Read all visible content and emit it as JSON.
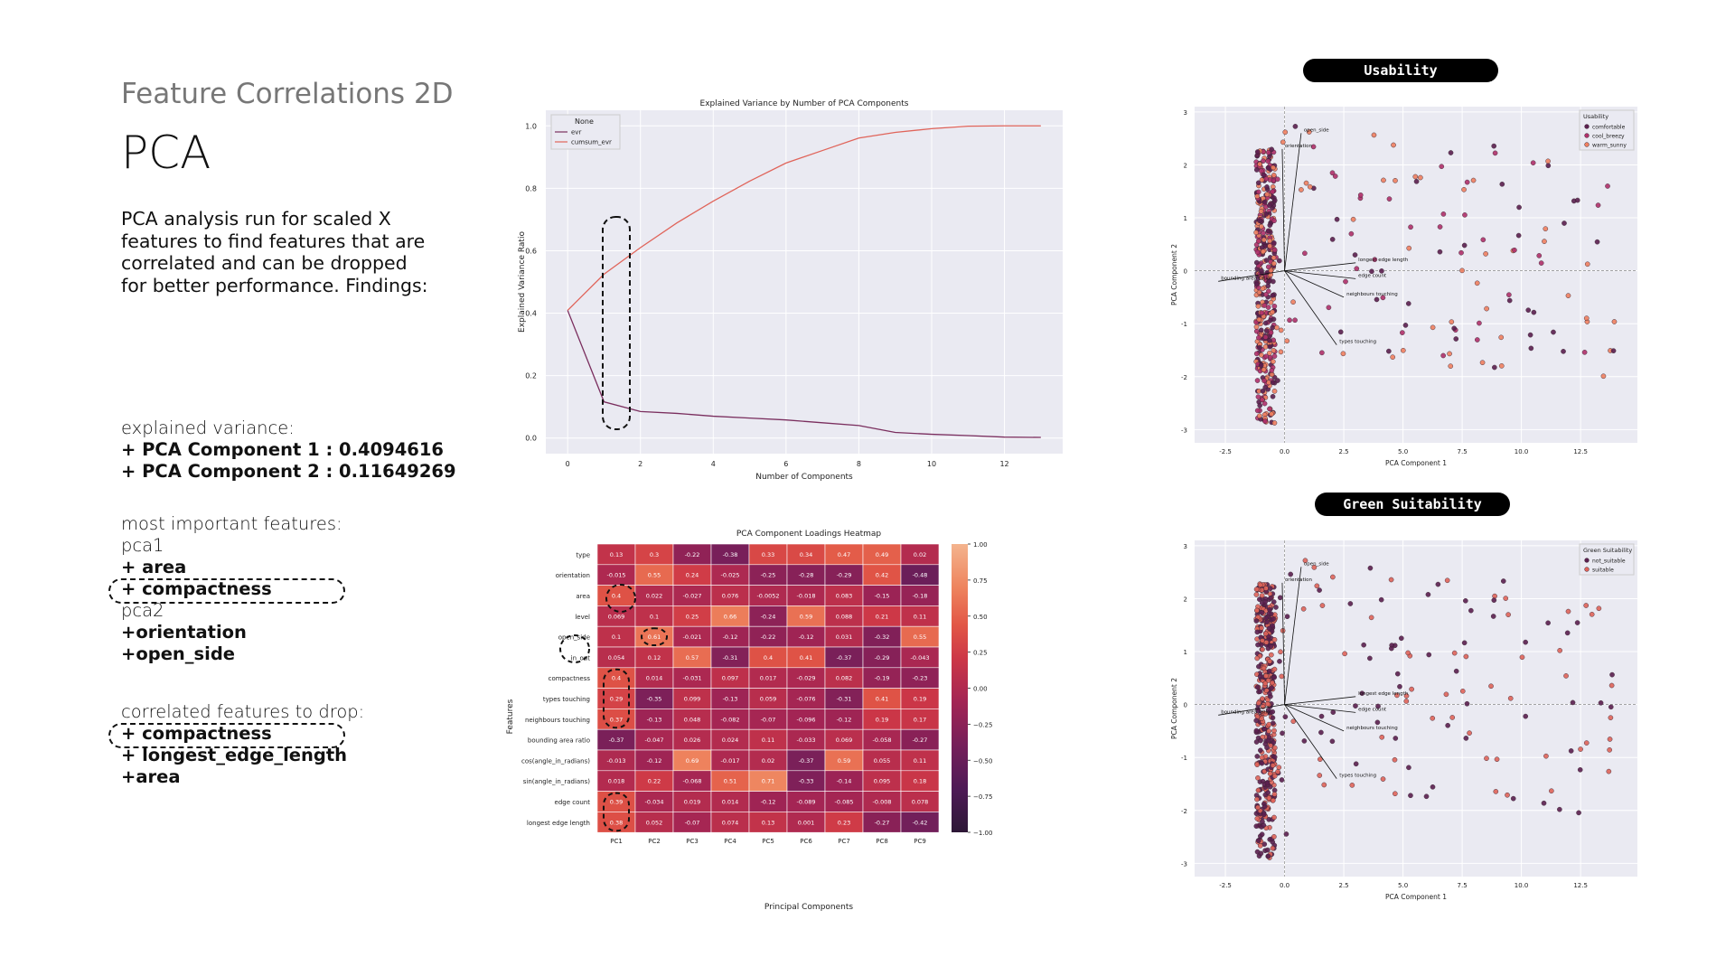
{
  "slide": {
    "eyebrow": "Feature Correlations 2D",
    "title": "PCA",
    "intro": "PCA analysis run for scaled X features to find features that are correlated and can be dropped for better performance. Findings:",
    "variance_heading": "explained variance:",
    "variance_line1": "+ PCA Component 1 :  0.4094616",
    "variance_line2": "+ PCA Component 2 : 0.11649269",
    "important_heading": "most important features:",
    "pca1_label": "pca1",
    "pca1_feat1": "+ area",
    "pca1_feat2": "+ compactness",
    "pca2_label": "pca2",
    "pca2_feat1": "+orientation",
    "pca2_feat2": "+open_side",
    "drop_heading": "correlated features to drop:",
    "drop1": "+ compactness",
    "drop2": "+ longest_edge_length",
    "drop3": "+area",
    "usability_pill": "Usability",
    "green_pill": "Green Suitability"
  },
  "chart_data": [
    {
      "type": "line",
      "title": "Explained Variance by Number of PCA Components",
      "xlabel": "Number of Components",
      "ylabel": "Explained Variance Ratio",
      "legend_title": "None",
      "legend_position": "top-left",
      "x": [
        0,
        1,
        2,
        3,
        4,
        5,
        6,
        7,
        8,
        9,
        10,
        11,
        12,
        13
      ],
      "xlim": [
        -0.6,
        13.6
      ],
      "ylim": [
        -0.05,
        1.05
      ],
      "xticks": [
        0,
        2,
        4,
        6,
        8,
        10,
        12
      ],
      "yticks": [
        0.0,
        0.2,
        0.4,
        0.6,
        0.8,
        1.0
      ],
      "grid": true,
      "series": [
        {
          "name": "evr",
          "color": "#7a2e5e",
          "values": [
            0.409,
            0.116,
            0.085,
            0.079,
            0.07,
            0.064,
            0.058,
            0.049,
            0.04,
            0.018,
            0.012,
            0.008,
            0.003,
            0.002
          ]
        },
        {
          "name": "cumsum_evr",
          "color": "#e0645a",
          "values": [
            0.409,
            0.525,
            0.61,
            0.689,
            0.759,
            0.823,
            0.881,
            0.921,
            0.961,
            0.979,
            0.991,
            0.999,
            1.0,
            1.0
          ]
        }
      ]
    },
    {
      "type": "heatmap",
      "title": "PCA Component Loadings Heatmap",
      "xlabel": "Principal Components",
      "ylabel": "Features",
      "columns": [
        "PC1",
        "PC2",
        "PC3",
        "PC4",
        "PC5",
        "PC6",
        "PC7",
        "PC8",
        "PC9"
      ],
      "rows": [
        "type",
        "orientation",
        "area",
        "level",
        "open_side",
        "in_out",
        "compactness",
        "types touching",
        "neighbours touching",
        "bounding area ratio",
        "cos(angle_in_radians)",
        "sin(angle_in_radians)",
        "edge count",
        "longest edge length"
      ],
      "values": [
        [
          "0.13",
          "0.3",
          "-0.22",
          "-0.38",
          "0.33",
          "0.34",
          "0.47",
          "0.49",
          "0.02"
        ],
        [
          "-0.015",
          "0.55",
          "0.24",
          "-0.025",
          "-0.25",
          "-0.28",
          "-0.29",
          "0.42",
          "-0.48"
        ],
        [
          "0.4",
          "0.022",
          "-0.027",
          "0.076",
          "-0.0052",
          "-0.018",
          "0.083",
          "-0.15",
          "-0.18"
        ],
        [
          "0.069",
          "0.1",
          "0.25",
          "0.66",
          "-0.24",
          "0.59",
          "0.088",
          "0.21",
          "0.11"
        ],
        [
          "0.1",
          "0.61",
          "-0.021",
          "-0.12",
          "-0.22",
          "-0.12",
          "0.031",
          "-0.32",
          "0.55"
        ],
        [
          "0.054",
          "0.12",
          "0.57",
          "-0.31",
          "0.4",
          "0.41",
          "-0.37",
          "-0.29",
          "-0.043"
        ],
        [
          "0.4",
          "0.014",
          "-0.031",
          "0.097",
          "0.017",
          "-0.029",
          "0.082",
          "-0.19",
          "-0.23"
        ],
        [
          "0.29",
          "-0.35",
          "0.099",
          "-0.13",
          "0.059",
          "-0.076",
          "-0.31",
          "0.41",
          "0.19"
        ],
        [
          "0.37",
          "-0.13",
          "0.048",
          "-0.082",
          "-0.07",
          "-0.096",
          "-0.12",
          "0.19",
          "0.17"
        ],
        [
          "-0.37",
          "-0.047",
          "0.026",
          "0.024",
          "0.11",
          "-0.033",
          "0.069",
          "-0.058",
          "-0.27"
        ],
        [
          "-0.013",
          "-0.12",
          "0.69",
          "-0.017",
          "0.02",
          "-0.37",
          "0.59",
          "0.055",
          "0.11"
        ],
        [
          "0.018",
          "0.22",
          "-0.068",
          "0.51",
          "0.71",
          "-0.33",
          "-0.14",
          "0.095",
          "0.18"
        ],
        [
          "0.39",
          "-0.034",
          "0.019",
          "0.014",
          "-0.12",
          "-0.089",
          "-0.085",
          "-0.008",
          "0.078"
        ],
        [
          "0.38",
          "0.052",
          "-0.07",
          "0.074",
          "0.13",
          "0.001",
          "0.23",
          "-0.27",
          "-0.42"
        ]
      ],
      "colorbar_ticks": [
        "1.00",
        "0.75",
        "0.50",
        "0.25",
        "0.00",
        "−0.25",
        "−0.50",
        "−0.75",
        "−1.00"
      ],
      "vmin": -1,
      "vmax": 1,
      "colormap": "rocket"
    },
    {
      "type": "scatter",
      "xlabel": "PCA Component 1",
      "ylabel": "PCA Component 2",
      "legend_title": "Usability",
      "legend_position": "top-right",
      "legend": [
        {
          "name": "comfortable",
          "color": "#5b1f4f"
        },
        {
          "name": "cool_breezy",
          "color": "#b0306a"
        },
        {
          "name": "warm_sunny",
          "color": "#f08060"
        }
      ],
      "xlim": [
        -3.8,
        14.9
      ],
      "ylim": [
        -3.25,
        3.1
      ],
      "xticks": [
        "-2.5",
        "0.0",
        "2.5",
        "5.0",
        "7.5",
        "10.0",
        "12.5"
      ],
      "yticks": [
        "-3",
        "-2",
        "-1",
        "0",
        "1",
        "2",
        "3"
      ],
      "loading_labels": [
        "open_side",
        "orientation",
        "longest edge length",
        "edge count",
        "bounding area ratio",
        "neighbours touching",
        "types touching"
      ]
    },
    {
      "type": "scatter",
      "xlabel": "PCA Component 1",
      "ylabel": "PCA Component 2",
      "legend_title": "Green Suitability",
      "legend_position": "top-right",
      "legend": [
        {
          "name": "not_suitable",
          "color": "#5b1f4f"
        },
        {
          "name": "suitable",
          "color": "#e0645a"
        }
      ],
      "xlim": [
        -3.8,
        14.9
      ],
      "ylim": [
        -3.25,
        3.1
      ],
      "xticks": [
        "-2.5",
        "0.0",
        "2.5",
        "5.0",
        "7.5",
        "10.0",
        "12.5"
      ],
      "yticks": [
        "-3",
        "-2",
        "-1",
        "0",
        "1",
        "2",
        "3"
      ],
      "loading_labels": [
        "open_side",
        "orientation",
        "longest edge length",
        "edge count",
        "bounding area ratio",
        "neighbours touching",
        "types touching"
      ]
    }
  ]
}
